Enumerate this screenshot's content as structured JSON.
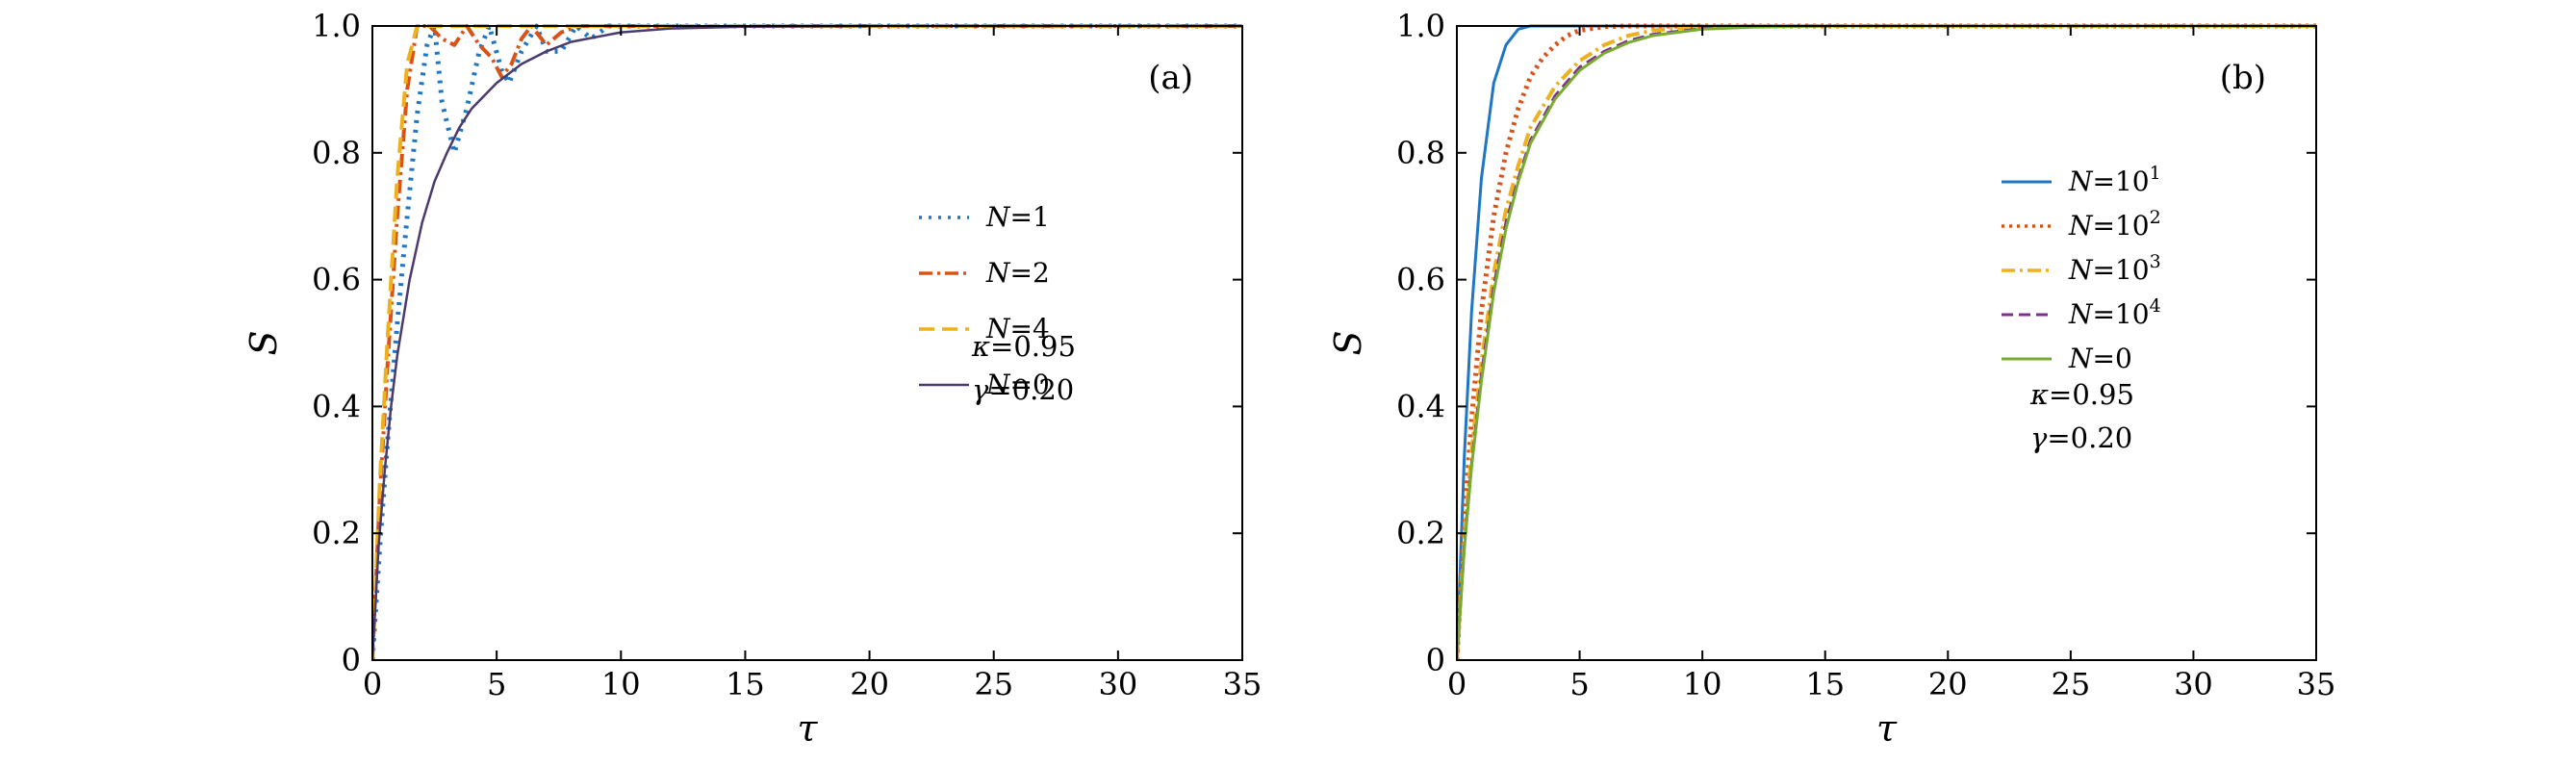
{
  "chart_data": [
    {
      "type": "line",
      "panel_label": "(a)",
      "xlabel": "τ",
      "ylabel": "S",
      "xlim": [
        0,
        35
      ],
      "ylim": [
        0,
        1.0
      ],
      "xticks": [
        "0",
        "5",
        "10",
        "15",
        "20",
        "25",
        "30",
        "35"
      ],
      "yticks": [
        "0",
        "0.2",
        "0.4",
        "0.6",
        "0.8",
        "1.0"
      ],
      "legend_placement": "center-right",
      "annotation_lines": [
        {
          "sym": "κ",
          "eq": "=",
          "val": "0.95"
        },
        {
          "sym": "γ",
          "eq": "=",
          "val": "0.20"
        }
      ],
      "series": [
        {
          "name": "N = 1",
          "legend_sym": "N",
          "legend_eq": "=",
          "legend_val": "1",
          "color": "#1f77c4",
          "dash": "3,7",
          "width": 5,
          "points": [
            [
              0,
              0
            ],
            [
              0.3,
              0.18
            ],
            [
              0.6,
              0.34
            ],
            [
              1.0,
              0.53
            ],
            [
              1.4,
              0.7
            ],
            [
              1.8,
              0.86
            ],
            [
              2.2,
              0.97
            ],
            [
              2.5,
              1.0
            ],
            [
              2.8,
              0.88
            ],
            [
              3.3,
              0.8
            ],
            [
              3.8,
              0.87
            ],
            [
              4.3,
              0.96
            ],
            [
              4.7,
              1.0
            ],
            [
              5.2,
              0.93
            ],
            [
              5.5,
              0.91
            ],
            [
              6.0,
              0.96
            ],
            [
              6.6,
              1.0
            ],
            [
              7.0,
              0.96
            ],
            [
              7.6,
              0.96
            ],
            [
              8.2,
              1.0
            ],
            [
              8.8,
              0.98
            ],
            [
              9.5,
              1.0
            ],
            [
              35,
              1.0
            ]
          ]
        },
        {
          "name": "N = 2",
          "legend_sym": "N",
          "legend_eq": "=",
          "legend_val": "2",
          "color": "#d95319",
          "dash": "14,5,3,5",
          "width": 4,
          "points": [
            [
              0,
              0
            ],
            [
              0.3,
              0.26
            ],
            [
              0.6,
              0.46
            ],
            [
              1.0,
              0.7
            ],
            [
              1.4,
              0.9
            ],
            [
              1.8,
              1.0
            ],
            [
              2.3,
              1.0
            ],
            [
              2.8,
              0.98
            ],
            [
              3.3,
              0.97
            ],
            [
              3.8,
              1.0
            ],
            [
              4.3,
              0.97
            ],
            [
              4.8,
              0.95
            ],
            [
              5.2,
              0.92
            ],
            [
              5.6,
              0.94
            ],
            [
              6.0,
              0.98
            ],
            [
              6.4,
              1.0
            ],
            [
              7.0,
              0.97
            ],
            [
              7.6,
              0.99
            ],
            [
              8.3,
              1.0
            ],
            [
              35,
              1.0
            ]
          ]
        },
        {
          "name": "N = 4",
          "legend_sym": "N",
          "legend_eq": "=",
          "legend_val": "4",
          "color": "#edb120",
          "dash": "16,8",
          "width": 4,
          "points": [
            [
              0,
              0
            ],
            [
              0.3,
              0.28
            ],
            [
              0.6,
              0.5
            ],
            [
              1.0,
              0.76
            ],
            [
              1.4,
              0.94
            ],
            [
              1.8,
              1.0
            ],
            [
              35,
              1.0
            ]
          ]
        },
        {
          "name": "N = 0",
          "legend_sym": "N",
          "legend_eq": "=",
          "legend_val": "0",
          "color": "#4b3a6e",
          "dash": "",
          "width": 2.5,
          "points": [
            [
              0,
              0
            ],
            [
              0.25,
              0.18
            ],
            [
              0.5,
              0.3
            ],
            [
              0.75,
              0.4
            ],
            [
              1.0,
              0.48
            ],
            [
              1.5,
              0.6
            ],
            [
              2.0,
              0.69
            ],
            [
              2.5,
              0.755
            ],
            [
              3.0,
              0.8
            ],
            [
              3.5,
              0.84
            ],
            [
              4.0,
              0.87
            ],
            [
              5.0,
              0.91
            ],
            [
              6.0,
              0.94
            ],
            [
              7.0,
              0.96
            ],
            [
              8.0,
              0.975
            ],
            [
              10.0,
              0.99
            ],
            [
              12.0,
              0.996
            ],
            [
              15.0,
              0.999
            ],
            [
              20.0,
              1.0
            ],
            [
              35,
              1.0
            ]
          ]
        }
      ]
    },
    {
      "type": "line",
      "panel_label": "(b)",
      "xlabel": "τ",
      "ylabel": "S",
      "xlim": [
        0,
        35
      ],
      "ylim": [
        0,
        1.0
      ],
      "xticks": [
        "0",
        "5",
        "10",
        "15",
        "20",
        "25",
        "30",
        "35"
      ],
      "yticks": [
        "0",
        "0.2",
        "0.4",
        "0.6",
        "0.8",
        "1.0"
      ],
      "legend_placement": "center-right",
      "annotation_lines": [
        {
          "sym": "κ",
          "eq": "=",
          "val": "0.95"
        },
        {
          "sym": "γ",
          "eq": "=",
          "val": "0.20"
        }
      ],
      "series": [
        {
          "name": "N = 10¹",
          "legend_sym": "N",
          "legend_eq": "=",
          "legend_val": "10",
          "legend_exp": "1",
          "color": "#1f77c4",
          "dash": "",
          "width": 3,
          "points": [
            [
              0,
              0
            ],
            [
              0.3,
              0.32
            ],
            [
              0.6,
              0.55
            ],
            [
              1.0,
              0.76
            ],
            [
              1.5,
              0.91
            ],
            [
              2.0,
              0.97
            ],
            [
              2.5,
              0.995
            ],
            [
              3.0,
              1.0
            ],
            [
              35,
              1.0
            ]
          ]
        },
        {
          "name": "N = 10²",
          "legend_sym": "N",
          "legend_eq": "=",
          "legend_val": "10",
          "legend_exp": "2",
          "color": "#d95319",
          "dash": "3,5",
          "width": 5,
          "points": [
            [
              0,
              0
            ],
            [
              0.3,
              0.22
            ],
            [
              0.6,
              0.38
            ],
            [
              1.0,
              0.55
            ],
            [
              1.5,
              0.7
            ],
            [
              2.0,
              0.8
            ],
            [
              2.5,
              0.87
            ],
            [
              3.0,
              0.92
            ],
            [
              3.5,
              0.95
            ],
            [
              4.0,
              0.97
            ],
            [
              4.5,
              0.985
            ],
            [
              5.0,
              0.993
            ],
            [
              6.0,
              0.999
            ],
            [
              7.0,
              1.0
            ],
            [
              35,
              1.0
            ]
          ]
        },
        {
          "name": "N = 10³",
          "legend_sym": "N",
          "legend_eq": "=",
          "legend_val": "10",
          "legend_exp": "3",
          "color": "#edb120",
          "dash": "14,5,3,5",
          "width": 4,
          "points": [
            [
              0,
              0
            ],
            [
              0.3,
              0.19
            ],
            [
              0.6,
              0.33
            ],
            [
              1.0,
              0.47
            ],
            [
              1.5,
              0.61
            ],
            [
              2.0,
              0.71
            ],
            [
              2.5,
              0.78
            ],
            [
              3.0,
              0.84
            ],
            [
              4.0,
              0.905
            ],
            [
              5.0,
              0.945
            ],
            [
              6.0,
              0.97
            ],
            [
              7.0,
              0.985
            ],
            [
              8.0,
              0.993
            ],
            [
              10.0,
              0.999
            ],
            [
              12.0,
              1.0
            ],
            [
              35,
              1.0
            ]
          ]
        },
        {
          "name": "N = 10⁴",
          "legend_sym": "N",
          "legend_eq": "=",
          "legend_val": "10",
          "legend_exp": "4",
          "color": "#7e2f8e",
          "dash": "12,6",
          "width": 3,
          "points": [
            [
              0,
              0
            ],
            [
              0.3,
              0.18
            ],
            [
              0.6,
              0.31
            ],
            [
              1.0,
              0.45
            ],
            [
              1.5,
              0.59
            ],
            [
              2.0,
              0.69
            ],
            [
              2.5,
              0.76
            ],
            [
              3.0,
              0.82
            ],
            [
              4.0,
              0.89
            ],
            [
              5.0,
              0.935
            ],
            [
              6.0,
              0.96
            ],
            [
              7.0,
              0.977
            ],
            [
              8.0,
              0.987
            ],
            [
              10.0,
              0.996
            ],
            [
              12.0,
              0.999
            ],
            [
              15.0,
              1.0
            ],
            [
              35,
              1.0
            ]
          ]
        },
        {
          "name": "N = 0",
          "legend_sym": "N",
          "legend_eq": "=",
          "legend_val": "0",
          "color": "#77ac30",
          "dash": "",
          "width": 3,
          "points": [
            [
              0,
              0
            ],
            [
              0.3,
              0.175
            ],
            [
              0.6,
              0.305
            ],
            [
              1.0,
              0.44
            ],
            [
              1.5,
              0.58
            ],
            [
              2.0,
              0.68
            ],
            [
              2.5,
              0.755
            ],
            [
              3.0,
              0.815
            ],
            [
              4.0,
              0.885
            ],
            [
              5.0,
              0.93
            ],
            [
              6.0,
              0.957
            ],
            [
              7.0,
              0.974
            ],
            [
              8.0,
              0.985
            ],
            [
              10.0,
              0.995
            ],
            [
              12.0,
              0.998
            ],
            [
              15.0,
              1.0
            ],
            [
              35,
              1.0
            ]
          ]
        }
      ]
    }
  ]
}
